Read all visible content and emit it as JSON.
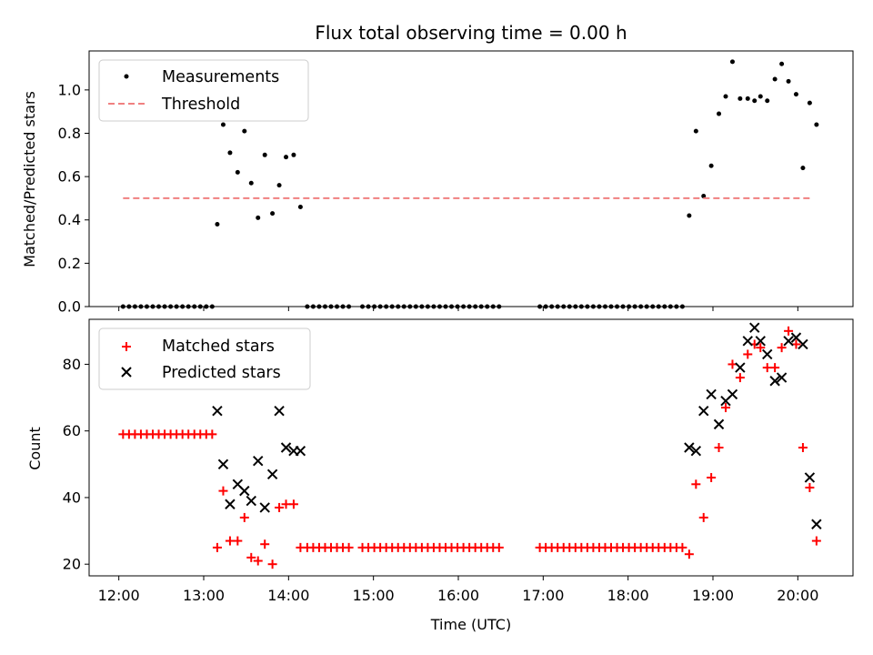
{
  "chart_data": [
    {
      "type": "scatter",
      "title": "Flux total observing time = 0.00 h",
      "xlabel": "",
      "ylabel": "Matched/Predicted stars",
      "xlim": [
        11.65,
        20.65
      ],
      "ylim": [
        0.0,
        1.18
      ],
      "yticks": [
        0.0,
        0.2,
        0.4,
        0.6,
        0.8,
        1.0
      ],
      "xticks": [
        12,
        13,
        14,
        15,
        16,
        17,
        18,
        19,
        20
      ],
      "legend_position": "top-left",
      "series": [
        {
          "name": "Measurements",
          "kind": "points",
          "color": "#000000",
          "points": [
            [
              12.05,
              0
            ],
            [
              12.12,
              0
            ],
            [
              12.19,
              0
            ],
            [
              12.26,
              0
            ],
            [
              12.33,
              0
            ],
            [
              12.4,
              0
            ],
            [
              12.47,
              0
            ],
            [
              12.54,
              0
            ],
            [
              12.61,
              0
            ],
            [
              12.68,
              0
            ],
            [
              12.75,
              0
            ],
            [
              12.82,
              0
            ],
            [
              12.89,
              0
            ],
            [
              12.96,
              0
            ],
            [
              13.03,
              0
            ],
            [
              13.1,
              0
            ],
            [
              13.16,
              0.38
            ],
            [
              13.23,
              0.84
            ],
            [
              13.31,
              0.71
            ],
            [
              13.4,
              0.62
            ],
            [
              13.48,
              0.81
            ],
            [
              13.56,
              0.57
            ],
            [
              13.64,
              0.41
            ],
            [
              13.72,
              0.7
            ],
            [
              13.81,
              0.43
            ],
            [
              13.89,
              0.56
            ],
            [
              13.97,
              0.69
            ],
            [
              14.06,
              0.7
            ],
            [
              14.14,
              0.46
            ],
            [
              14.22,
              0
            ],
            [
              14.29,
              0
            ],
            [
              14.36,
              0
            ],
            [
              14.43,
              0
            ],
            [
              14.5,
              0
            ],
            [
              14.57,
              0
            ],
            [
              14.64,
              0
            ],
            [
              14.71,
              0
            ],
            [
              14.87,
              0
            ],
            [
              14.94,
              0
            ],
            [
              15.01,
              0
            ],
            [
              15.08,
              0
            ],
            [
              15.15,
              0
            ],
            [
              15.22,
              0
            ],
            [
              15.29,
              0
            ],
            [
              15.36,
              0
            ],
            [
              15.43,
              0
            ],
            [
              15.5,
              0
            ],
            [
              15.57,
              0
            ],
            [
              15.64,
              0
            ],
            [
              15.71,
              0
            ],
            [
              15.78,
              0
            ],
            [
              15.85,
              0
            ],
            [
              15.92,
              0
            ],
            [
              15.99,
              0
            ],
            [
              16.06,
              0
            ],
            [
              16.13,
              0
            ],
            [
              16.2,
              0
            ],
            [
              16.27,
              0
            ],
            [
              16.34,
              0
            ],
            [
              16.41,
              0
            ],
            [
              16.48,
              0
            ],
            [
              16.96,
              0
            ],
            [
              17.03,
              0
            ],
            [
              17.1,
              0
            ],
            [
              17.17,
              0
            ],
            [
              17.24,
              0
            ],
            [
              17.31,
              0
            ],
            [
              17.38,
              0
            ],
            [
              17.45,
              0
            ],
            [
              17.52,
              0
            ],
            [
              17.59,
              0
            ],
            [
              17.66,
              0
            ],
            [
              17.73,
              0
            ],
            [
              17.8,
              0
            ],
            [
              17.87,
              0
            ],
            [
              17.94,
              0
            ],
            [
              18.01,
              0
            ],
            [
              18.08,
              0
            ],
            [
              18.15,
              0
            ],
            [
              18.22,
              0
            ],
            [
              18.29,
              0
            ],
            [
              18.36,
              0
            ],
            [
              18.43,
              0
            ],
            [
              18.5,
              0
            ],
            [
              18.57,
              0
            ],
            [
              18.64,
              0
            ],
            [
              18.72,
              0.42
            ],
            [
              18.8,
              0.81
            ],
            [
              18.89,
              0.51
            ],
            [
              18.98,
              0.65
            ],
            [
              19.07,
              0.89
            ],
            [
              19.15,
              0.97
            ],
            [
              19.23,
              1.13
            ],
            [
              19.32,
              0.96
            ],
            [
              19.41,
              0.96
            ],
            [
              19.49,
              0.95
            ],
            [
              19.56,
              0.97
            ],
            [
              19.64,
              0.95
            ],
            [
              19.73,
              1.05
            ],
            [
              19.81,
              1.12
            ],
            [
              19.89,
              1.04
            ],
            [
              19.98,
              0.98
            ],
            [
              20.06,
              0.64
            ],
            [
              20.14,
              0.94
            ],
            [
              20.22,
              0.84
            ]
          ]
        },
        {
          "name": "Threshold",
          "kind": "dashed-line",
          "color": "#f08080",
          "x": [
            12.05,
            20.15
          ],
          "y": [
            0.5,
            0.5
          ]
        }
      ]
    },
    {
      "type": "scatter",
      "title": "",
      "xlabel": "Time (UTC)",
      "ylabel": "Count",
      "xlim": [
        11.65,
        20.65
      ],
      "ylim": [
        16.5,
        93.5
      ],
      "yticks": [
        20,
        40,
        60,
        80
      ],
      "xticks": [
        12,
        13,
        14,
        15,
        16,
        17,
        18,
        19,
        20
      ],
      "xtick_labels": [
        "12:00",
        "13:00",
        "14:00",
        "15:00",
        "16:00",
        "17:00",
        "18:00",
        "19:00",
        "20:00"
      ],
      "legend_position": "top-left",
      "series": [
        {
          "name": "Matched stars",
          "kind": "plus",
          "color": "#ff0000",
          "points": [
            [
              12.05,
              59
            ],
            [
              12.12,
              59
            ],
            [
              12.19,
              59
            ],
            [
              12.26,
              59
            ],
            [
              12.33,
              59
            ],
            [
              12.4,
              59
            ],
            [
              12.47,
              59
            ],
            [
              12.54,
              59
            ],
            [
              12.61,
              59
            ],
            [
              12.68,
              59
            ],
            [
              12.75,
              59
            ],
            [
              12.82,
              59
            ],
            [
              12.89,
              59
            ],
            [
              12.96,
              59
            ],
            [
              13.03,
              59
            ],
            [
              13.1,
              59
            ],
            [
              13.16,
              25
            ],
            [
              13.23,
              42
            ],
            [
              13.31,
              27
            ],
            [
              13.4,
              27
            ],
            [
              13.48,
              34
            ],
            [
              13.56,
              22
            ],
            [
              13.64,
              21
            ],
            [
              13.72,
              26
            ],
            [
              13.81,
              20
            ],
            [
              13.89,
              37
            ],
            [
              13.97,
              38
            ],
            [
              14.06,
              38
            ],
            [
              14.14,
              25
            ],
            [
              14.22,
              25
            ],
            [
              14.29,
              25
            ],
            [
              14.36,
              25
            ],
            [
              14.43,
              25
            ],
            [
              14.5,
              25
            ],
            [
              14.57,
              25
            ],
            [
              14.64,
              25
            ],
            [
              14.71,
              25
            ],
            [
              14.87,
              25
            ],
            [
              14.94,
              25
            ],
            [
              15.01,
              25
            ],
            [
              15.08,
              25
            ],
            [
              15.15,
              25
            ],
            [
              15.22,
              25
            ],
            [
              15.29,
              25
            ],
            [
              15.36,
              25
            ],
            [
              15.43,
              25
            ],
            [
              15.5,
              25
            ],
            [
              15.57,
              25
            ],
            [
              15.64,
              25
            ],
            [
              15.71,
              25
            ],
            [
              15.78,
              25
            ],
            [
              15.85,
              25
            ],
            [
              15.92,
              25
            ],
            [
              15.99,
              25
            ],
            [
              16.06,
              25
            ],
            [
              16.13,
              25
            ],
            [
              16.2,
              25
            ],
            [
              16.27,
              25
            ],
            [
              16.34,
              25
            ],
            [
              16.41,
              25
            ],
            [
              16.48,
              25
            ],
            [
              16.96,
              25
            ],
            [
              17.03,
              25
            ],
            [
              17.1,
              25
            ],
            [
              17.17,
              25
            ],
            [
              17.24,
              25
            ],
            [
              17.31,
              25
            ],
            [
              17.38,
              25
            ],
            [
              17.45,
              25
            ],
            [
              17.52,
              25
            ],
            [
              17.59,
              25
            ],
            [
              17.66,
              25
            ],
            [
              17.73,
              25
            ],
            [
              17.8,
              25
            ],
            [
              17.87,
              25
            ],
            [
              17.94,
              25
            ],
            [
              18.01,
              25
            ],
            [
              18.08,
              25
            ],
            [
              18.15,
              25
            ],
            [
              18.22,
              25
            ],
            [
              18.29,
              25
            ],
            [
              18.36,
              25
            ],
            [
              18.43,
              25
            ],
            [
              18.5,
              25
            ],
            [
              18.57,
              25
            ],
            [
              18.64,
              25
            ],
            [
              18.72,
              23
            ],
            [
              18.8,
              44
            ],
            [
              18.89,
              34
            ],
            [
              18.98,
              46
            ],
            [
              19.07,
              55
            ],
            [
              19.15,
              67
            ],
            [
              19.23,
              80
            ],
            [
              19.32,
              76
            ],
            [
              19.41,
              83
            ],
            [
              19.49,
              86
            ],
            [
              19.56,
              85
            ],
            [
              19.64,
              79
            ],
            [
              19.73,
              79
            ],
            [
              19.81,
              85
            ],
            [
              19.89,
              90
            ],
            [
              19.98,
              86
            ],
            [
              20.06,
              55
            ],
            [
              20.14,
              43
            ],
            [
              20.22,
              27
            ]
          ]
        },
        {
          "name": "Predicted stars",
          "kind": "x",
          "color": "#000000",
          "points": [
            [
              13.16,
              66
            ],
            [
              13.23,
              50
            ],
            [
              13.31,
              38
            ],
            [
              13.4,
              44
            ],
            [
              13.48,
              42
            ],
            [
              13.56,
              39
            ],
            [
              13.64,
              51
            ],
            [
              13.72,
              37
            ],
            [
              13.81,
              47
            ],
            [
              13.89,
              66
            ],
            [
              13.97,
              55
            ],
            [
              14.06,
              54
            ],
            [
              14.14,
              54
            ],
            [
              18.72,
              55
            ],
            [
              18.8,
              54
            ],
            [
              18.89,
              66
            ],
            [
              18.98,
              71
            ],
            [
              19.07,
              62
            ],
            [
              19.15,
              69
            ],
            [
              19.23,
              71
            ],
            [
              19.32,
              79
            ],
            [
              19.41,
              87
            ],
            [
              19.49,
              91
            ],
            [
              19.56,
              87
            ],
            [
              19.64,
              83
            ],
            [
              19.73,
              75
            ],
            [
              19.81,
              76
            ],
            [
              19.89,
              87
            ],
            [
              19.98,
              88
            ],
            [
              20.06,
              86
            ],
            [
              20.14,
              46
            ],
            [
              20.22,
              32
            ]
          ]
        }
      ]
    }
  ]
}
